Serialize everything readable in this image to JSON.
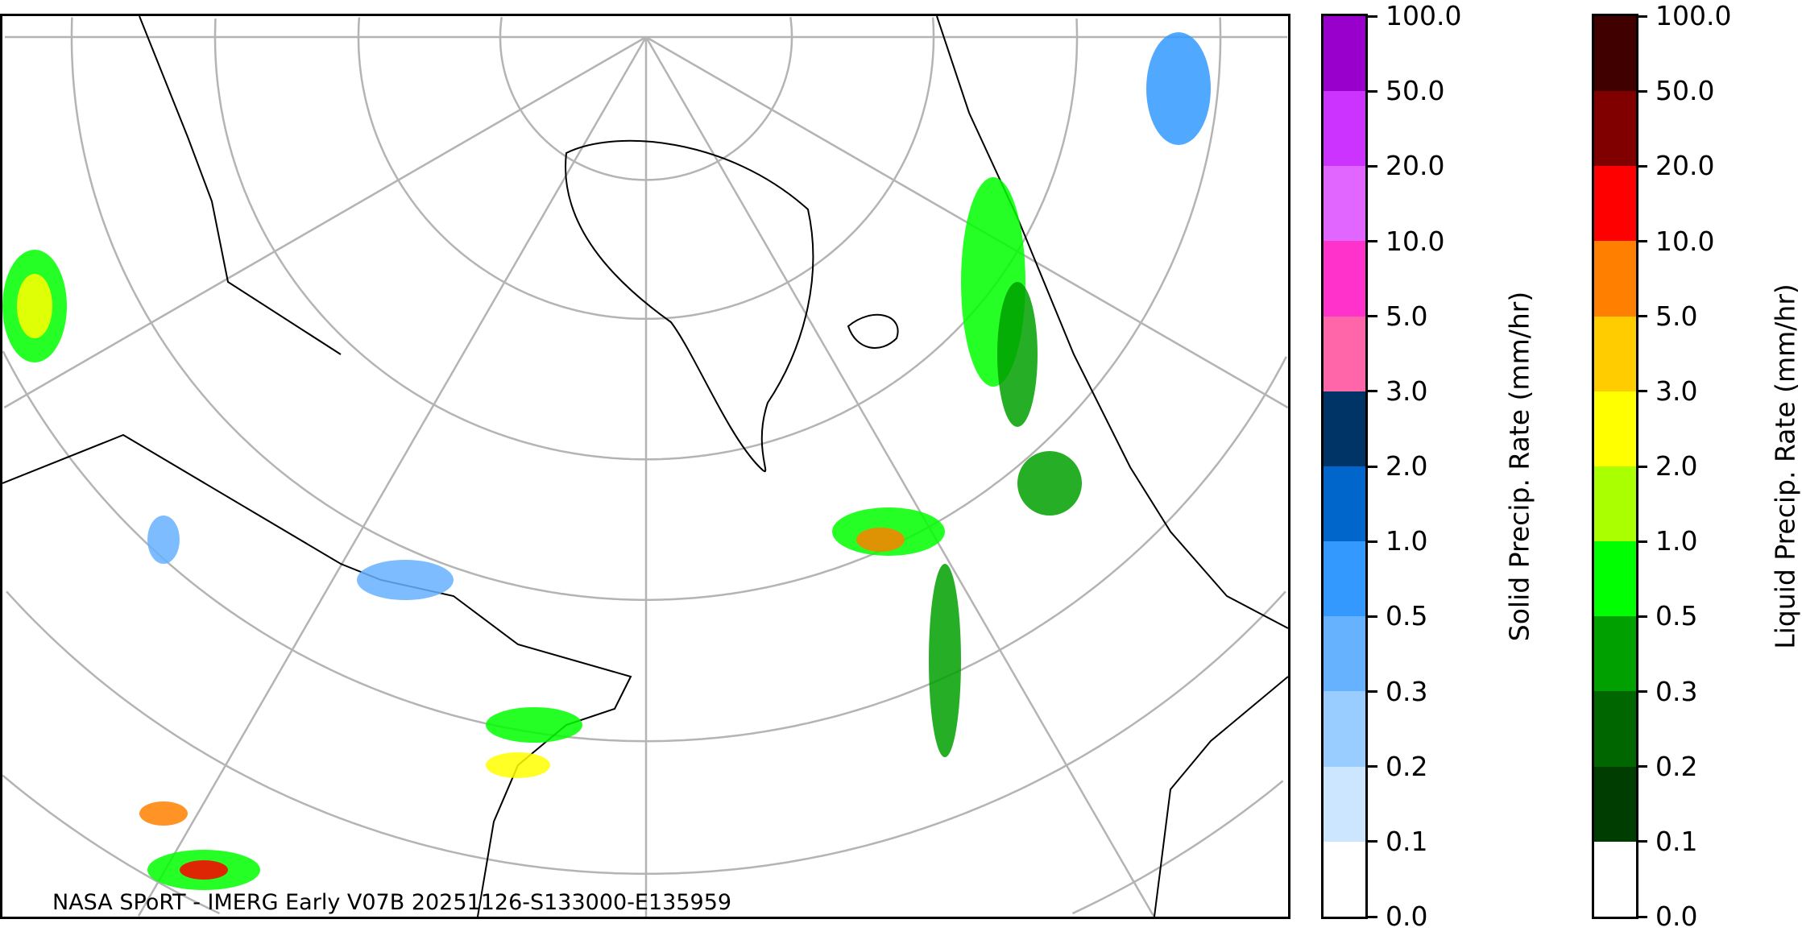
{
  "map": {
    "caption": "NASA SPoRT - IMERG Early V07B 20251126-S133000-E135959",
    "graticule_color": "#b4b4b4",
    "coastline_color": "#000000"
  },
  "colorbars": [
    {
      "label": "Solid Precip. Rate (mm/hr)",
      "ticks": [
        "0.0",
        "0.1",
        "0.2",
        "0.3",
        "0.5",
        "1.0",
        "2.0",
        "3.0",
        "5.0",
        "10.0",
        "20.0",
        "50.0",
        "100.0"
      ],
      "colors": [
        "#ffffff",
        "#cce6ff",
        "#99ccff",
        "#66b2ff",
        "#3399ff",
        "#0066cc",
        "#003366",
        "#ff66aa",
        "#ff33cc",
        "#e066ff",
        "#cc33ff",
        "#9900cc"
      ]
    },
    {
      "label": "Liquid Precip. Rate (mm/hr)",
      "ticks": [
        "0.0",
        "0.1",
        "0.2",
        "0.3",
        "0.5",
        "1.0",
        "2.0",
        "3.0",
        "5.0",
        "10.0",
        "20.0",
        "50.0",
        "100.0"
      ],
      "colors": [
        "#ffffff",
        "#003d00",
        "#006600",
        "#00a000",
        "#00ff00",
        "#aaff00",
        "#ffff00",
        "#ffcc00",
        "#ff8000",
        "#ff0000",
        "#800000",
        "#400000"
      ]
    }
  ]
}
